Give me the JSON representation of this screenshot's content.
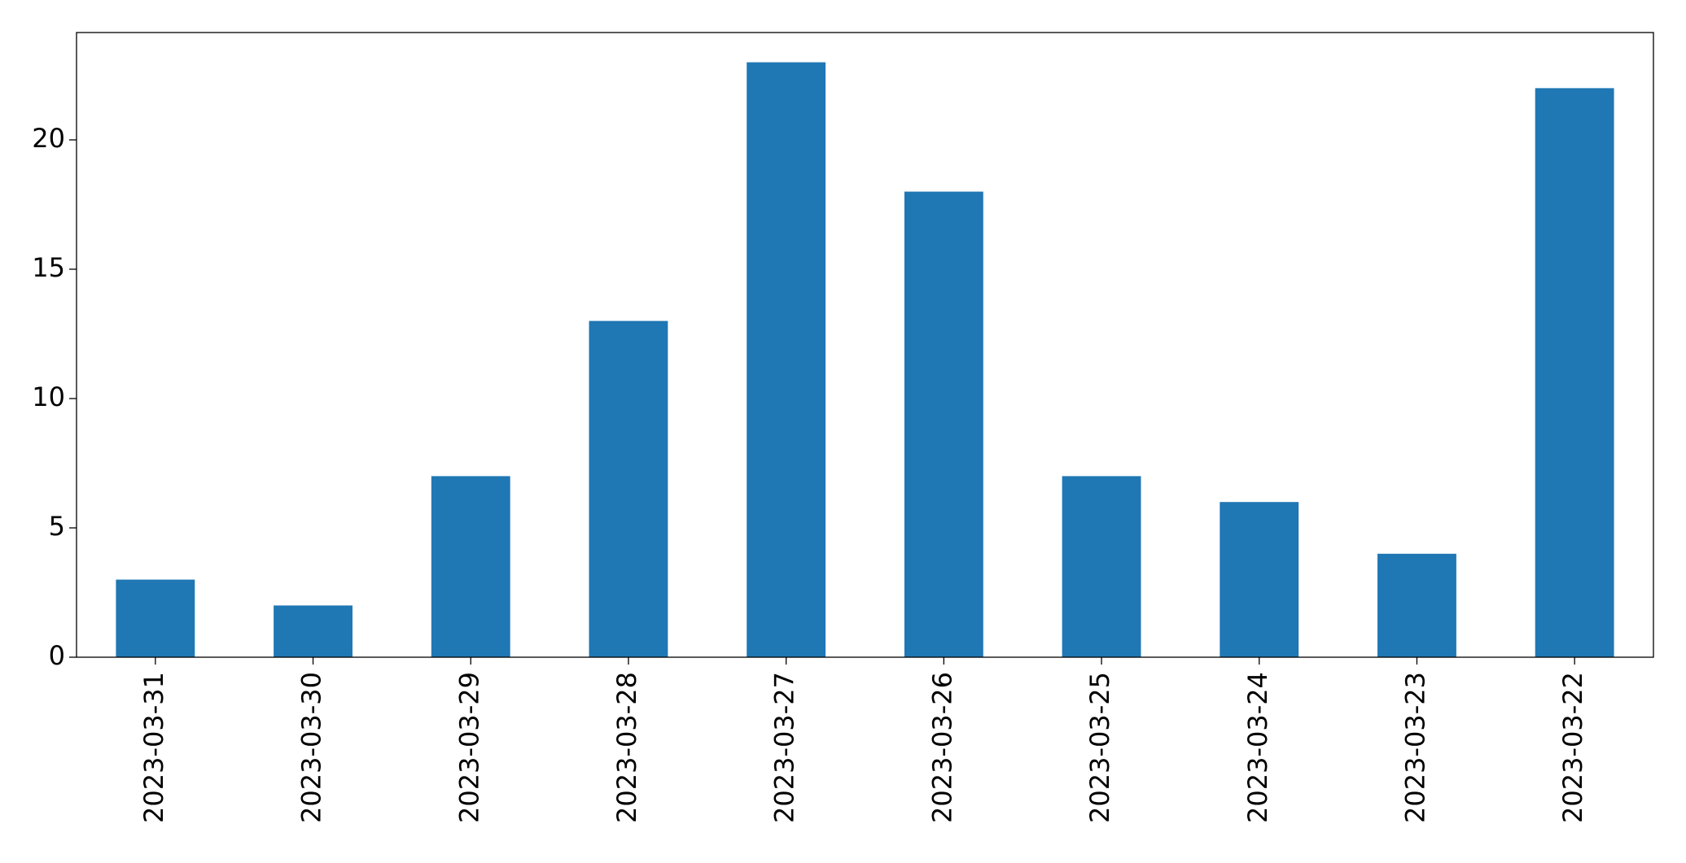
{
  "chart_data": {
    "type": "bar",
    "categories": [
      "2023-03-31",
      "2023-03-30",
      "2023-03-29",
      "2023-03-28",
      "2023-03-27",
      "2023-03-26",
      "2023-03-25",
      "2023-03-24",
      "2023-03-23",
      "2023-03-22"
    ],
    "values": [
      3,
      2,
      7,
      13,
      23,
      18,
      7,
      6,
      4,
      22
    ],
    "color": "#1f77b4",
    "ylim": [
      0,
      24.15
    ],
    "yticks": [
      0,
      5,
      10,
      15,
      20
    ],
    "grid": false
  }
}
